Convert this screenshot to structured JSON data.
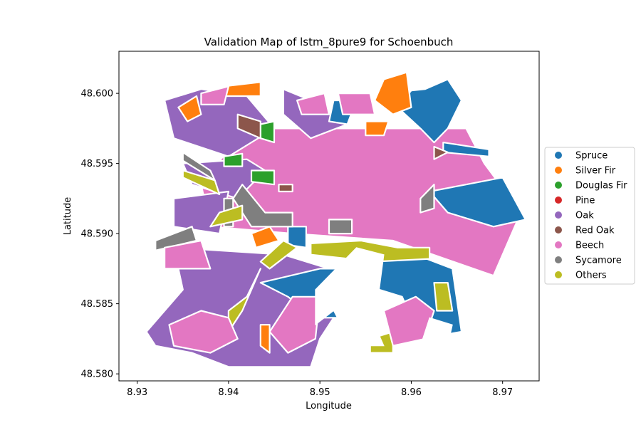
{
  "chart_data": {
    "type": "map",
    "title": "Validation Map of lstm_8pure9 for Schoenbuch",
    "xlabel": "Longitude",
    "ylabel": "Latitude",
    "xlim": [
      8.928,
      8.974
    ],
    "ylim": [
      48.5795,
      48.603
    ],
    "x_ticks": [
      {
        "value": 8.93,
        "label": "8.93"
      },
      {
        "value": 8.94,
        "label": "8.94"
      },
      {
        "value": 8.95,
        "label": "8.95"
      },
      {
        "value": 8.96,
        "label": "8.96"
      },
      {
        "value": 8.97,
        "label": "8.97"
      }
    ],
    "y_ticks": [
      {
        "value": 48.58,
        "label": "48.580"
      },
      {
        "value": 48.585,
        "label": "48.585"
      },
      {
        "value": 48.59,
        "label": "48.590"
      },
      {
        "value": 48.595,
        "label": "48.595"
      },
      {
        "value": 48.6,
        "label": "48.600"
      }
    ],
    "legend_position": "right-center",
    "legend": [
      {
        "name": "Spruce",
        "color": "#1f77b4"
      },
      {
        "name": "Silver Fir",
        "color": "#ff7f0e"
      },
      {
        "name": "Douglas Fir",
        "color": "#2ca02c"
      },
      {
        "name": "Pine",
        "color": "#d62728"
      },
      {
        "name": "Oak",
        "color": "#9467bd"
      },
      {
        "name": "Red Oak",
        "color": "#8c564b"
      },
      {
        "name": "Beech",
        "color": "#e377c2"
      },
      {
        "name": "Sycamore",
        "color": "#7f7f7f"
      },
      {
        "name": "Others",
        "color": "#bcbd22"
      }
    ],
    "grid": false,
    "parcels": [
      {
        "cls": "Beech",
        "pts": [
          [
            8.944,
            48.5975
          ],
          [
            8.966,
            48.5975
          ],
          [
            8.968,
            48.595
          ],
          [
            8.972,
            48.5915
          ],
          [
            8.969,
            48.587
          ],
          [
            8.958,
            48.5895
          ],
          [
            8.947,
            48.59
          ],
          [
            8.938,
            48.5905
          ],
          [
            8.937,
            48.5935
          ],
          [
            8.94,
            48.596
          ]
        ]
      },
      {
        "cls": "Oak",
        "pts": [
          [
            8.933,
            48.5995
          ],
          [
            8.937,
            48.6003
          ],
          [
            8.942,
            48.5998
          ],
          [
            8.945,
            48.5975
          ],
          [
            8.94,
            48.5955
          ],
          [
            8.934,
            48.5968
          ]
        ]
      },
      {
        "cls": "Oak",
        "pts": [
          [
            8.935,
            48.595
          ],
          [
            8.942,
            48.5953
          ],
          [
            8.944,
            48.5945
          ],
          [
            8.941,
            48.5925
          ],
          [
            8.936,
            48.5935
          ]
        ]
      },
      {
        "cls": "Oak",
        "pts": [
          [
            8.934,
            48.5925
          ],
          [
            8.94,
            48.593
          ],
          [
            8.939,
            48.59
          ],
          [
            8.934,
            48.5905
          ]
        ]
      },
      {
        "cls": "Oak",
        "pts": [
          [
            8.946,
            48.6003
          ],
          [
            8.949,
            48.5995
          ],
          [
            8.953,
            48.5978
          ],
          [
            8.949,
            48.5968
          ],
          [
            8.946,
            48.5985
          ]
        ]
      },
      {
        "cls": "Oak",
        "pts": [
          [
            8.931,
            48.583
          ],
          [
            8.935,
            48.586
          ],
          [
            8.934,
            48.589
          ],
          [
            8.946,
            48.5885
          ],
          [
            8.951,
            48.5875
          ],
          [
            8.953,
            48.5855
          ],
          [
            8.95,
            48.5825
          ],
          [
            8.949,
            48.5805
          ],
          [
            8.94,
            48.5805
          ],
          [
            8.936,
            48.5815
          ],
          [
            8.932,
            48.582
          ]
        ]
      },
      {
        "cls": "Spruce",
        "pts": [
          [
            8.9615,
            48.6003
          ],
          [
            8.964,
            48.601
          ],
          [
            8.9655,
            48.5995
          ],
          [
            8.964,
            48.5975
          ],
          [
            8.9625,
            48.5965
          ],
          [
            8.961,
            48.5975
          ],
          [
            8.9585,
            48.599
          ],
          [
            8.96,
            48.6002
          ]
        ]
      },
      {
        "cls": "Spruce",
        "pts": [
          [
            8.962,
            48.593
          ],
          [
            8.966,
            48.5935
          ],
          [
            8.97,
            48.594
          ],
          [
            8.9725,
            48.591
          ],
          [
            8.969,
            48.5905
          ],
          [
            8.964,
            48.5915
          ]
        ]
      },
      {
        "cls": "Spruce",
        "pts": [
          [
            8.9635,
            48.5965
          ],
          [
            8.9685,
            48.596
          ],
          [
            8.9685,
            48.5955
          ],
          [
            8.9635,
            48.5958
          ]
        ]
      },
      {
        "cls": "Spruce",
        "pts": [
          [
            8.9515,
            48.5995
          ],
          [
            8.954,
            48.5995
          ],
          [
            8.953,
            48.5978
          ],
          [
            8.951,
            48.598
          ]
        ]
      },
      {
        "cls": "Spruce",
        "pts": [
          [
            8.955,
            48.5885
          ],
          [
            8.9605,
            48.5885
          ],
          [
            8.9645,
            48.5875
          ],
          [
            8.9655,
            48.583
          ],
          [
            8.961,
            48.5825
          ],
          [
            8.959,
            48.5855
          ],
          [
            8.9565,
            48.586
          ],
          [
            8.9555,
            48.587
          ]
        ]
      },
      {
        "cls": "Spruce",
        "pts": [
          [
            8.9435,
            48.5865
          ],
          [
            8.95,
            48.5875
          ],
          [
            8.954,
            48.5875
          ],
          [
            8.9545,
            48.586
          ],
          [
            8.953,
            48.584
          ],
          [
            8.9495,
            48.584
          ],
          [
            8.9465,
            48.5855
          ]
        ]
      },
      {
        "cls": "Spruce",
        "pts": [
          [
            8.9465,
            48.5905
          ],
          [
            8.9485,
            48.5905
          ],
          [
            8.9485,
            48.589
          ],
          [
            8.9465,
            48.5892
          ]
        ]
      },
      {
        "cls": "Silver Fir",
        "pts": [
          [
            8.957,
            48.601
          ],
          [
            8.9595,
            48.6015
          ],
          [
            8.96,
            48.599
          ],
          [
            8.958,
            48.5985
          ],
          [
            8.956,
            48.5995
          ]
        ]
      },
      {
        "cls": "Silver Fir",
        "pts": [
          [
            8.955,
            48.598
          ],
          [
            8.9575,
            48.598
          ],
          [
            8.957,
            48.597
          ],
          [
            8.955,
            48.597
          ]
        ]
      },
      {
        "cls": "Silver Fir",
        "pts": [
          [
            8.9395,
            48.6005
          ],
          [
            8.9435,
            48.6008
          ],
          [
            8.9435,
            48.5998
          ],
          [
            8.9398,
            48.5998
          ]
        ]
      },
      {
        "cls": "Silver Fir",
        "pts": [
          [
            8.9345,
            48.599
          ],
          [
            8.9365,
            48.5998
          ],
          [
            8.937,
            48.5985
          ],
          [
            8.9355,
            48.598
          ]
        ]
      },
      {
        "cls": "Silver Fir",
        "pts": [
          [
            8.9425,
            48.59
          ],
          [
            8.9445,
            48.5905
          ],
          [
            8.9455,
            48.5895
          ],
          [
            8.943,
            48.589
          ]
        ]
      },
      {
        "cls": "Silver Fir",
        "pts": [
          [
            8.9435,
            48.5835
          ],
          [
            8.9445,
            48.5835
          ],
          [
            8.9445,
            48.5815
          ],
          [
            8.9435,
            48.582
          ]
        ]
      },
      {
        "cls": "Douglas Fir",
        "pts": [
          [
            8.9435,
            48.5978
          ],
          [
            8.945,
            48.598
          ],
          [
            8.945,
            48.5965
          ],
          [
            8.9435,
            48.5968
          ]
        ]
      },
      {
        "cls": "Douglas Fir",
        "pts": [
          [
            8.9395,
            48.5955
          ],
          [
            8.9415,
            48.5957
          ],
          [
            8.9415,
            48.5948
          ],
          [
            8.9395,
            48.5948
          ]
        ]
      },
      {
        "cls": "Douglas Fir",
        "pts": [
          [
            8.9425,
            48.5945
          ],
          [
            8.945,
            48.5945
          ],
          [
            8.945,
            48.5935
          ],
          [
            8.9425,
            48.5937
          ]
        ]
      },
      {
        "cls": "Red Oak",
        "pts": [
          [
            8.941,
            48.5985
          ],
          [
            8.9435,
            48.598
          ],
          [
            8.9435,
            48.5968
          ],
          [
            8.941,
            48.5975
          ]
        ]
      },
      {
        "cls": "Red Oak",
        "pts": [
          [
            8.9455,
            48.5935
          ],
          [
            8.947,
            48.5935
          ],
          [
            8.947,
            48.593
          ],
          [
            8.9455,
            48.593
          ]
        ]
      },
      {
        "cls": "Red Oak",
        "pts": [
          [
            8.9625,
            48.5962
          ],
          [
            8.964,
            48.5958
          ],
          [
            8.9625,
            48.5953
          ]
        ]
      },
      {
        "cls": "Sycamore",
        "pts": [
          [
            8.935,
            48.5958
          ],
          [
            8.938,
            48.5945
          ],
          [
            8.9385,
            48.5938
          ],
          [
            8.935,
            48.5952
          ]
        ]
      },
      {
        "cls": "Sycamore",
        "pts": [
          [
            8.9415,
            48.5935
          ],
          [
            8.944,
            48.5915
          ],
          [
            8.947,
            48.5915
          ],
          [
            8.947,
            48.5905
          ],
          [
            8.9425,
            48.5905
          ],
          [
            8.9405,
            48.5925
          ]
        ]
      },
      {
        "cls": "Sycamore",
        "pts": [
          [
            8.9395,
            48.5925
          ],
          [
            8.9405,
            48.5925
          ],
          [
            8.9405,
            48.5905
          ],
          [
            8.9395,
            48.5905
          ]
        ]
      },
      {
        "cls": "Sycamore",
        "pts": [
          [
            8.932,
            48.5895
          ],
          [
            8.936,
            48.5905
          ],
          [
            8.9365,
            48.5895
          ],
          [
            8.932,
            48.5888
          ]
        ]
      },
      {
        "cls": "Sycamore",
        "pts": [
          [
            8.951,
            48.591
          ],
          [
            8.9535,
            48.591
          ],
          [
            8.9535,
            48.59
          ],
          [
            8.951,
            48.59
          ]
        ]
      },
      {
        "cls": "Sycamore",
        "pts": [
          [
            8.961,
            48.5925
          ],
          [
            8.9625,
            48.5935
          ],
          [
            8.9625,
            48.5918
          ],
          [
            8.961,
            48.5915
          ]
        ]
      },
      {
        "cls": "Sycamore",
        "pts": [
          [
            8.9585,
            48.5845
          ],
          [
            8.9595,
            48.5845
          ],
          [
            8.9595,
            48.5835
          ],
          [
            8.9585,
            48.5835
          ]
        ]
      },
      {
        "cls": "Others",
        "pts": [
          [
            8.938,
            48.5905
          ],
          [
            8.9415,
            48.591
          ],
          [
            8.9415,
            48.592
          ],
          [
            8.939,
            48.5915
          ]
        ]
      },
      {
        "cls": "Others",
        "pts": [
          [
            8.935,
            48.5945
          ],
          [
            8.9385,
            48.5938
          ],
          [
            8.939,
            48.5928
          ],
          [
            8.935,
            48.594
          ]
        ]
      },
      {
        "cls": "Others",
        "pts": [
          [
            8.9435,
            48.588
          ],
          [
            8.946,
            48.5895
          ],
          [
            8.9475,
            48.589
          ],
          [
            8.9445,
            48.5875
          ]
        ]
      },
      {
        "cls": "Others",
        "pts": [
          [
            8.94,
            48.5845
          ],
          [
            8.942,
            48.5855
          ],
          [
            8.9435,
            48.5875
          ],
          [
            8.9415,
            48.5845
          ],
          [
            8.94,
            48.583
          ]
        ]
      },
      {
        "cls": "Others",
        "pts": [
          [
            8.949,
            48.5893
          ],
          [
            8.9545,
            48.5895
          ],
          [
            8.9585,
            48.589
          ],
          [
            8.962,
            48.589
          ],
          [
            8.962,
            48.5882
          ],
          [
            8.956,
            48.588
          ],
          [
            8.949,
            48.5885
          ]
        ]
      },
      {
        "cls": "Others",
        "pts": [
          [
            8.9625,
            48.5865
          ],
          [
            8.964,
            48.5865
          ],
          [
            8.9645,
            48.5845
          ],
          [
            8.9628,
            48.5845
          ]
        ]
      },
      {
        "cls": "Others",
        "pts": [
          [
            8.9555,
            48.5825
          ],
          [
            8.958,
            48.583
          ],
          [
            8.958,
            48.5815
          ],
          [
            8.9555,
            48.5815
          ]
        ]
      },
      {
        "cls": "Beech",
        "pts": [
          [
            8.9335,
            48.5835
          ],
          [
            8.937,
            48.5845
          ],
          [
            8.94,
            48.584
          ],
          [
            8.941,
            48.5825
          ],
          [
            8.938,
            48.5815
          ],
          [
            8.934,
            48.582
          ]
        ]
      },
      {
        "cls": "Beech",
        "pts": [
          [
            8.933,
            48.589
          ],
          [
            8.937,
            48.5895
          ],
          [
            8.938,
            48.5875
          ],
          [
            8.933,
            48.5875
          ]
        ]
      },
      {
        "cls": "Beech",
        "pts": [
          [
            8.957,
            48.5845
          ],
          [
            8.9605,
            48.5855
          ],
          [
            8.9625,
            48.5845
          ],
          [
            8.9615,
            48.5825
          ],
          [
            8.958,
            48.582
          ]
        ]
      },
      {
        "cls": "Beech",
        "pts": [
          [
            8.952,
            48.6
          ],
          [
            8.9555,
            48.6
          ],
          [
            8.956,
            48.5985
          ],
          [
            8.9525,
            48.5985
          ]
        ]
      },
      {
        "cls": "Beech",
        "pts": [
          [
            8.937,
            48.6
          ],
          [
            8.94,
            48.6005
          ],
          [
            8.9395,
            48.5992
          ],
          [
            8.937,
            48.5992
          ]
        ]
      },
      {
        "cls": "Beech",
        "pts": [
          [
            8.9445,
            48.583
          ],
          [
            8.947,
            48.5855
          ],
          [
            8.95,
            48.5855
          ],
          [
            8.9495,
            48.5825
          ],
          [
            8.9465,
            48.5815
          ]
        ]
      },
      {
        "cls": "Beech",
        "pts": [
          [
            8.9475,
            48.5995
          ],
          [
            8.9505,
            48.6
          ],
          [
            8.951,
            48.5985
          ],
          [
            8.948,
            48.5985
          ]
        ]
      }
    ],
    "white_gaps": [
      [
        [
          8.9495,
          48.586
        ],
        [
          8.954,
          48.589
        ],
        [
          8.957,
          48.5885
        ],
        [
          8.956,
          48.5835
        ],
        [
          8.957,
          48.582
        ],
        [
          8.9535,
          48.582
        ],
        [
          8.9515,
          48.5845
        ],
        [
          8.9495,
          48.5835
        ]
      ],
      [
        [
          8.961,
          48.582
        ],
        [
          8.964,
          48.582
        ],
        [
          8.9645,
          48.5835
        ],
        [
          8.962,
          48.584
        ]
      ]
    ]
  }
}
